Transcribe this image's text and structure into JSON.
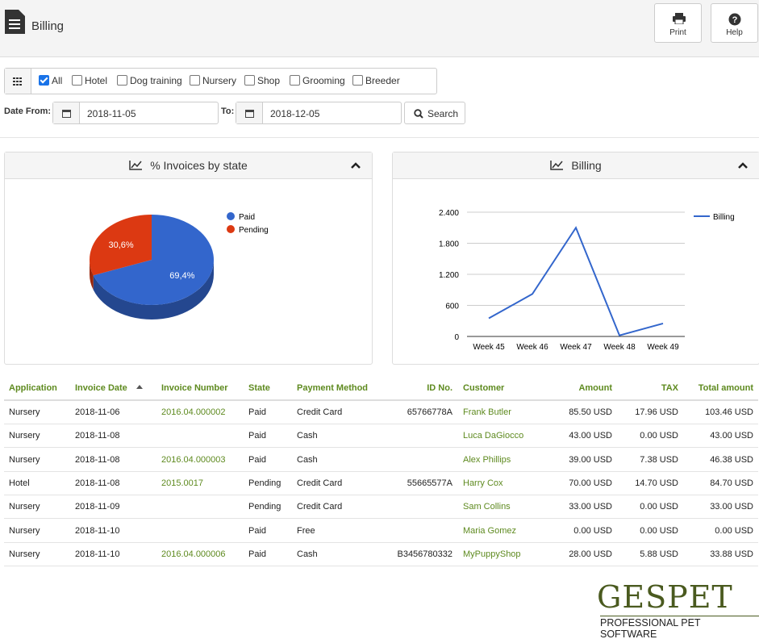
{
  "header": {
    "title": "Billing",
    "buttons": [
      "Print",
      "Help"
    ]
  },
  "filters": {
    "options": [
      {
        "label": "All",
        "checked": true
      },
      {
        "label": "Hotel",
        "checked": false
      },
      {
        "label": "Dog training",
        "checked": false
      },
      {
        "label": "Nursery",
        "checked": false
      },
      {
        "label": "Shop",
        "checked": false
      },
      {
        "label": "Grooming",
        "checked": false
      },
      {
        "label": "Breeder",
        "checked": false
      }
    ],
    "date_from_label": "Date From:",
    "date_from": "2018-11-05",
    "to_label": "To:",
    "date_to": "2018-12-05",
    "search": "Search"
  },
  "chart_data": [
    {
      "type": "pie",
      "title": "% Invoices by state",
      "categories": [
        "Paid",
        "Pending"
      ],
      "values": [
        69.4,
        30.6
      ],
      "value_labels": [
        "69,4%",
        "30,6%"
      ],
      "colors": [
        "#3366cc",
        "#dc3912"
      ]
    },
    {
      "type": "line",
      "title": "Billing",
      "categories": [
        "Week 45",
        "Week 46",
        "Week 47",
        "Week 48",
        "Week 49"
      ],
      "series": [
        {
          "name": "Billing",
          "color": "#3366cc",
          "values": [
            350,
            820,
            2100,
            20,
            250
          ]
        }
      ],
      "ylim": [
        0,
        2400
      ],
      "yticks": [
        0,
        600,
        {
          "value": 1200,
          "label": "1.200"
        },
        {
          "value": 1800,
          "label": "1.800"
        },
        {
          "value": 2400,
          "label": "2.400"
        }
      ],
      "grid": true
    }
  ],
  "table": {
    "header": [
      "Application",
      "Invoice Date",
      "Invoice Number",
      "State",
      "Payment Method",
      "ID No.",
      "Customer",
      "Amount",
      "TAX",
      "Total amount"
    ],
    "rows": [
      [
        "Nursery",
        "2018-11-06",
        "2016.04.000002",
        "Paid",
        "Credit Card",
        "65766778A",
        "Frank Butler",
        "85.50 USD",
        "17.96 USD",
        "103.46 USD"
      ],
      [
        "Nursery",
        "2018-11-08",
        null,
        "Paid",
        "Cash",
        null,
        "Luca DaGiocco",
        "43.00 USD",
        "0.00 USD",
        "43.00 USD"
      ],
      [
        "Nursery",
        "2018-11-08",
        "2016.04.000003",
        "Paid",
        "Cash",
        null,
        "Alex Phillips",
        "39.00 USD",
        "7.38 USD",
        "46.38 USD"
      ],
      [
        "Hotel",
        "2018-11-08",
        "2015.0017",
        "Pending",
        "Credit Card",
        "55665577A",
        "Harry Cox",
        "70.00 USD",
        "14.70 USD",
        "84.70 USD"
      ],
      [
        "Nursery",
        "2018-11-09",
        null,
        "Pending",
        "Credit Card",
        null,
        "Sam Collins",
        "33.00 USD",
        "0.00 USD",
        "33.00 USD"
      ],
      [
        "Nursery",
        "2018-11-10",
        null,
        "Paid",
        "Free",
        null,
        "Maria Gomez",
        "0.00 USD",
        "0.00 USD",
        "0.00 USD"
      ],
      [
        "Nursery",
        "2018-11-10",
        "2016.04.000006",
        "Paid",
        "Cash",
        "B3456780332",
        "MyPuppyShop",
        "28.00 USD",
        "5.88 USD",
        "33.88 USD"
      ]
    ]
  },
  "logo": {
    "name": "GESPET",
    "tagline": "PROFESSIONAL PET SOFTWARE"
  }
}
